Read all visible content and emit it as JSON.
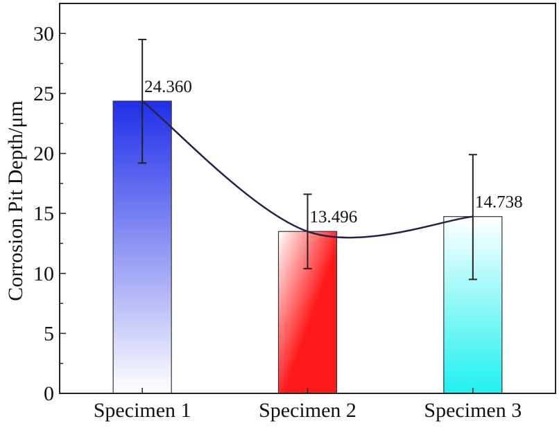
{
  "chart_data": {
    "type": "bar",
    "title": "",
    "xlabel": "",
    "ylabel": "Corrosion Pit Depth/μm",
    "ylim": [
      0,
      32.5
    ],
    "yticks": [
      0,
      5,
      10,
      15,
      20,
      25,
      30
    ],
    "categories": [
      "Specimen 1",
      "Specimen 2",
      "Specimen 3"
    ],
    "values": [
      24.36,
      13.496,
      14.738
    ],
    "value_labels": [
      "24.360",
      "13.496",
      "14.738"
    ],
    "error_low": [
      19.2,
      10.4,
      9.5
    ],
    "error_high": [
      29.5,
      16.6,
      19.9
    ],
    "trend_line": true,
    "bar_colors": [
      "#1f2ee8",
      "#ff1a1a",
      "#1ff0f0"
    ],
    "trend_color": "#2a1f4a",
    "grid": false,
    "legend": "none"
  }
}
